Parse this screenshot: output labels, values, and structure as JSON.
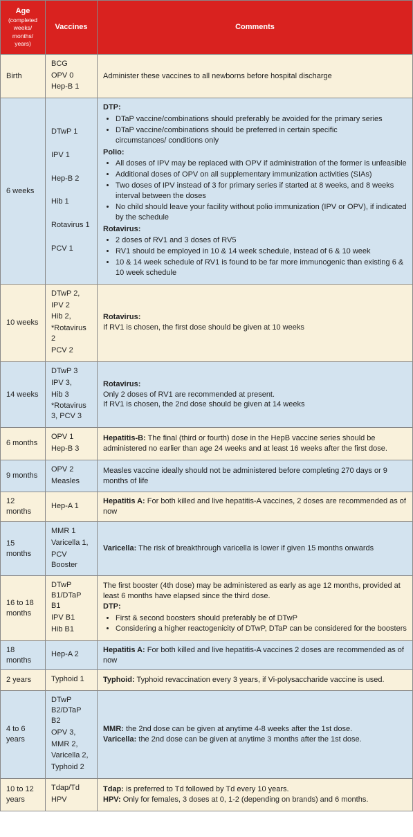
{
  "header": {
    "age": "Age",
    "ageSub": "(completed weeks/ months/ years)",
    "vaccines": "Vaccines",
    "comments": "Comments"
  },
  "rows": [
    {
      "cls": "cream",
      "age": "Birth",
      "vaccines": [
        "BCG",
        "OPV 0",
        "Hep-B 1"
      ],
      "html": "Administer these vaccines to all newborns before hospital discharge"
    },
    {
      "cls": "blue",
      "age": "6 weeks",
      "vaccines": [
        "DTwP 1",
        "",
        "IPV 1",
        "",
        "Hep-B 2",
        "",
        "Hib 1",
        "",
        "Rotavirus 1",
        "",
        "PCV 1"
      ],
      "html": "<span class='b'>DTP:</span><ul><li>DTaP vaccine/combinations should preferably be avoided for the primary series</li><li>DTaP vaccine/combinations should be preferred in  certain specific<br>circumstances/ conditions only</li></ul><span class='b'>Polio:</span><ul><li>All doses of IPV may be replaced with OPV if administration of the former is unfeasible</li><li>Additional doses of OPV on all supplementary immunization activities (SIAs)</li><li>Two doses of IPV instead of 3 for primary series if started at 8 weeks, and 8 weeks interval between the doses</li><li>No child should leave your facility without polio immunization (IPV or OPV), if indicated by the schedule</li></ul><span class='b'>Rotavirus:</span><ul><li>2 doses of RV1 and 3 doses of RV5</li><li>RV1 should be employed in 10 &amp; 14 week schedule, instead of  6 &amp; 10 week</li><li>10 &amp; 14 week schedule of RV1 is found to be far more immunogenic than existing 6 &amp; 10 week schedule</li></ul>"
    },
    {
      "cls": "cream",
      "age": "10 weeks",
      "vaccines": [
        "DTwP 2,",
        "IPV 2",
        "Hib 2,",
        "*Rotavirus 2",
        "PCV 2"
      ],
      "html": "<span class='b'>Rotavirus:</span><br>If RV1 is chosen, the first dose should be given at 10 weeks"
    },
    {
      "cls": "blue",
      "age": "14 weeks",
      "vaccines": [
        "DTwP 3",
        "IPV 3,",
        "Hib 3",
        "*Rotavirus 3, PCV 3"
      ],
      "html": "<span class='b'>Rotavirus:</span><br>Only 2 doses of RV1 are recommended at present.<br>If RV1 is chosen, the 2nd dose should be given at 14 weeks"
    },
    {
      "cls": "cream",
      "age": "6 months",
      "vaccines": [
        "OPV 1",
        "Hep-B 3"
      ],
      "html": "<span class='b'>Hepatitis-B:</span> The final (third or fourth) dose in the HepB vaccine series should be administered no earlier than age 24 weeks and at least 16 weeks after the first dose."
    },
    {
      "cls": "blue",
      "age": "9 months",
      "vaccines": [
        "OPV 2",
        "Measles"
      ],
      "html": "Measles vaccine ideally should not be administered before completing 270 days or 9 months of life"
    },
    {
      "cls": "cream",
      "age": "12 months",
      "vaccines": [
        "Hep-A 1"
      ],
      "html": "<span class='b'>Hepatitis A:</span> For both killed and live hepatitis-A vaccines,  2 doses are recommended as of now"
    },
    {
      "cls": "blue",
      "age": "15 months",
      "vaccines": [
        "MMR 1",
        "Varicella 1,",
        "PCV Booster"
      ],
      "html": "<span class='b'>Varicella:</span> The risk of breakthrough varicella is lower if given 15 months onwards"
    },
    {
      "cls": "cream",
      "age": "16 to 18 months",
      "vaccines": [
        "DTwP B1/DTaP B1",
        "IPV B1",
        "Hib B1"
      ],
      "html": "The first booster (4th dose) may be administered as early as age 12 months, provided at least 6 months have elapsed since the third dose.<br><span class='b'>DTP:</span><ul><li>First &amp; second boosters should preferably be of DTwP</li><li>Considering a higher reactogenicity of DTwP, DTaP can be considered for the boosters</li></ul>"
    },
    {
      "cls": "blue",
      "age": "18 months",
      "vaccines": [
        "Hep-A 2"
      ],
      "html": "<span class='b'>Hepatitis A:</span> For both killed and live hepatitis-A vaccines 2 doses are recommended as of now"
    },
    {
      "cls": "cream",
      "age": "2 years",
      "vaccines": [
        "Typhoid 1"
      ],
      "html": "<span class='b'>Typhoid:</span>  Typhoid revaccination every 3 years, if Vi-polysaccharide vaccine is used."
    },
    {
      "cls": "blue",
      "age": "4  to 6 years",
      "vaccines": [
        "DTwP B2/DTaP B2",
        "OPV 3,",
        "MMR 2,",
        "Varicella 2,",
        "Typhoid 2"
      ],
      "html": "<span class='b'>MMR:</span> the 2nd dose can be given at anytime 4-8 weeks after the 1st dose.<br><span class='b'>Varicella:</span> the 2nd dose can be given at anytime 3 months after the 1st dose."
    },
    {
      "cls": "cream",
      "age": "10 to 12 years",
      "vaccines": [
        "Tdap/Td",
        "HPV"
      ],
      "html": "<span class='b'>Tdap:</span> is preferred to Td followed by Td every 10 years.<br><span class='b'>HPV:</span> Only for females, 3 doses at 0, 1-2 (depending on brands) and 6 months."
    }
  ]
}
